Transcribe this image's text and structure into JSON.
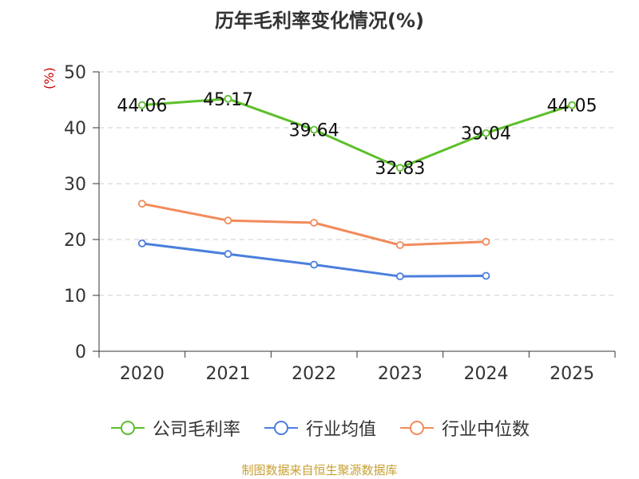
{
  "title": "历年毛利率变化情况(%)",
  "unit_label": "(%)",
  "source": "制图数据来自恒生聚源数据库",
  "colors": {
    "axis": "#333333",
    "grid": "#cccccc",
    "unit": "#cc0000",
    "source": "#c8a032"
  },
  "chart_data": {
    "type": "line",
    "title": "历年毛利率变化情况(%)",
    "xlabel": "",
    "ylabel": "(%)",
    "categories": [
      "2020",
      "2021",
      "2022",
      "2023",
      "2024",
      "2025"
    ],
    "ylim": [
      0,
      50
    ],
    "yticks": [
      0,
      10,
      20,
      30,
      40,
      50
    ],
    "grid": true,
    "legend_position": "bottom",
    "series": [
      {
        "name": "公司毛利率",
        "color": "#5cbf2a",
        "values": [
          44.06,
          45.17,
          39.64,
          32.83,
          39.04,
          44.05
        ],
        "labels": [
          "44.06",
          "45.17",
          "39.64",
          "32.83",
          "39.04",
          "44.05"
        ]
      },
      {
        "name": "行业均值",
        "color": "#4a7fdc",
        "values": [
          19.3,
          17.4,
          15.5,
          13.4,
          13.5,
          null
        ],
        "labels": []
      },
      {
        "name": "行业中位数",
        "color": "#f28b5b",
        "values": [
          26.4,
          23.4,
          23.0,
          19.0,
          19.6,
          null
        ],
        "labels": []
      }
    ]
  }
}
